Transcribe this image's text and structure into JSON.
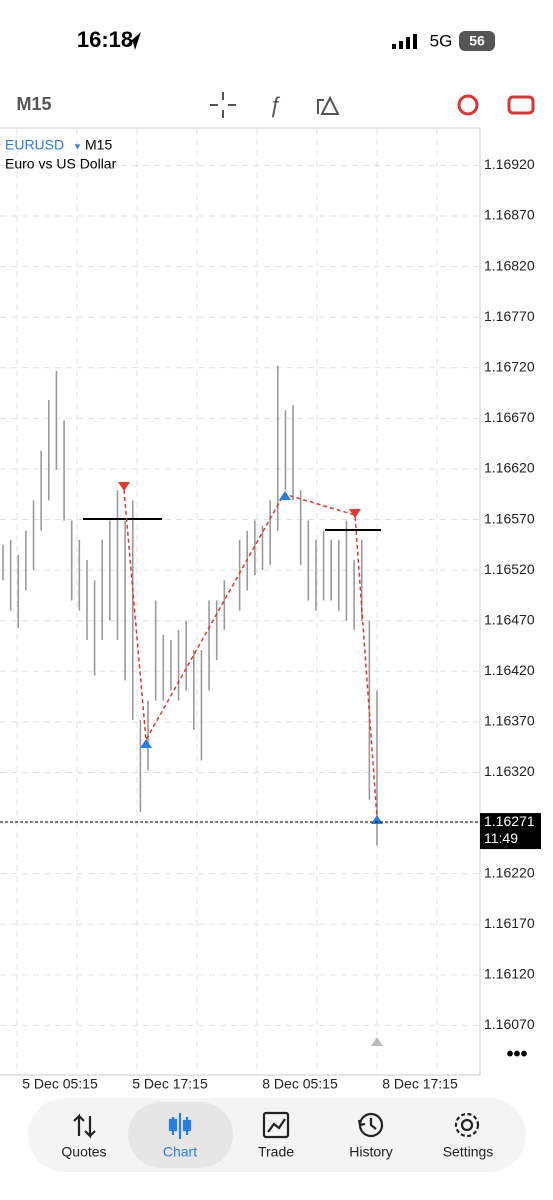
{
  "status_bar": {
    "time": "16:18",
    "network": "5G",
    "battery": "56"
  },
  "toolbar": {
    "timeframe": "M15"
  },
  "chart_data": {
    "type": "hilo",
    "symbol": "EURUSD",
    "timeframe": "M15",
    "description": "Euro vs US Dollar",
    "highs": [
      1.16545,
      1.1655,
      1.16535,
      1.16559,
      1.16589,
      1.16638,
      1.16688,
      1.16717,
      1.16668,
      1.16569,
      1.1655,
      1.1653,
      1.1651,
      1.1655,
      1.16569,
      1.16599,
      1.16569,
      1.16589,
      1.16372,
      1.16391,
      1.1649,
      1.16456,
      1.16451,
      1.16461,
      1.1647,
      1.16441,
      1.16441,
      1.1649,
      1.1649,
      1.1651,
      1.1652,
      1.1655,
      1.16559,
      1.16569,
      1.16564,
      1.16589,
      1.16722,
      1.16678,
      1.16683,
      1.16599,
      1.16569,
      1.1655,
      1.16559,
      1.1655,
      1.1655,
      1.16569,
      1.1653,
      1.1655,
      1.1647,
      1.16401
    ],
    "lows": [
      1.1651,
      1.1648,
      1.16463,
      1.165,
      1.1652,
      1.16559,
      1.16589,
      1.16619,
      1.16569,
      1.1649,
      1.1648,
      1.16451,
      1.16416,
      1.16451,
      1.1647,
      1.16451,
      1.16411,
      1.16372,
      1.16281,
      1.16322,
      1.16391,
      1.16391,
      1.16401,
      1.16391,
      1.16401,
      1.16362,
      1.16332,
      1.16401,
      1.16431,
      1.16461,
      1.1652,
      1.1648,
      1.165,
      1.16515,
      1.1652,
      1.16525,
      1.16559,
      1.16599,
      1.16589,
      1.16525,
      1.1649,
      1.1648,
      1.1649,
      1.1649,
      1.1648,
      1.1647,
      1.16461,
      1.1647,
      1.16293,
      1.16248
    ],
    "ylim": [
      1.16021,
      1.16957
    ],
    "yticks": [
      {
        "value": 1.1692,
        "label": "1.16920"
      },
      {
        "value": 1.1687,
        "label": "1.16870"
      },
      {
        "value": 1.1682,
        "label": "1.16820"
      },
      {
        "value": 1.1677,
        "label": "1.16770"
      },
      {
        "value": 1.1672,
        "label": "1.16720"
      },
      {
        "value": 1.1667,
        "label": "1.16670"
      },
      {
        "value": 1.1662,
        "label": "1.16620"
      },
      {
        "value": 1.1657,
        "label": "1.16570"
      },
      {
        "value": 1.1652,
        "label": "1.16520"
      },
      {
        "value": 1.1647,
        "label": "1.16470"
      },
      {
        "value": 1.1642,
        "label": "1.16420"
      },
      {
        "value": 1.1637,
        "label": "1.16370"
      },
      {
        "value": 1.1632,
        "label": "1.16320"
      },
      {
        "value": 1.1627,
        "label": "1.16270"
      },
      {
        "value": 1.1622,
        "label": "1.16220"
      },
      {
        "value": 1.1617,
        "label": "1.16170"
      },
      {
        "value": 1.1612,
        "label": "1.16120"
      },
      {
        "value": 1.1607,
        "label": "1.16070"
      }
    ],
    "x_labels": [
      "5 Dec 05:15",
      "5 Dec 17:15",
      "8 Dec 05:15",
      "8 Dec 17:15"
    ],
    "current_price": 1.16271,
    "countdown": "11:49",
    "color": "#9a9a9a"
  },
  "nav": [
    "Quotes",
    "Chart",
    "Trade",
    "History",
    "Settings"
  ]
}
